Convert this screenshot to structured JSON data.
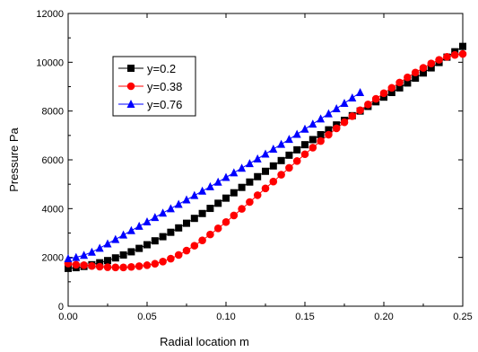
{
  "chart_data": {
    "type": "scatter",
    "title": "",
    "xlabel": "Radial location m",
    "ylabel": "Pressure Pa",
    "xlim": [
      0,
      0.25
    ],
    "ylim": [
      0,
      12000
    ],
    "x_ticks": [
      0.0,
      0.05,
      0.1,
      0.15,
      0.2,
      0.25
    ],
    "x_tick_labels": [
      "0.00",
      "0.05",
      "0.10",
      "0.15",
      "0.20",
      "0.25"
    ],
    "y_ticks": [
      0,
      2000,
      4000,
      6000,
      8000,
      10000,
      12000
    ],
    "y_tick_labels": [
      "0",
      "2000",
      "4000",
      "6000",
      "8000",
      "10000",
      "12000"
    ],
    "grid": false,
    "legend_position": "top-left",
    "series": [
      {
        "name": "y=0.2",
        "color": "#000000",
        "marker": "square",
        "x": [
          0.0,
          0.005,
          0.01,
          0.015,
          0.02,
          0.025,
          0.03,
          0.035,
          0.04,
          0.045,
          0.05,
          0.055,
          0.06,
          0.065,
          0.07,
          0.075,
          0.08,
          0.085,
          0.09,
          0.095,
          0.1,
          0.105,
          0.11,
          0.115,
          0.12,
          0.125,
          0.13,
          0.135,
          0.14,
          0.145,
          0.15,
          0.155,
          0.16,
          0.165,
          0.17,
          0.175,
          0.18,
          0.185,
          0.19,
          0.195,
          0.2,
          0.205,
          0.21,
          0.215,
          0.22,
          0.225,
          0.23,
          0.235,
          0.24,
          0.245,
          0.25
        ],
        "y": [
          1550,
          1580,
          1630,
          1700,
          1780,
          1870,
          1980,
          2100,
          2230,
          2370,
          2520,
          2680,
          2850,
          3030,
          3210,
          3400,
          3600,
          3800,
          4010,
          4220,
          4430,
          4650,
          4870,
          5090,
          5310,
          5530,
          5750,
          5970,
          6190,
          6410,
          6620,
          6830,
          7030,
          7230,
          7430,
          7620,
          7810,
          8000,
          8190,
          8380,
          8570,
          8760,
          8950,
          9150,
          9350,
          9560,
          9770,
          9990,
          10210,
          10430,
          10650
        ]
      },
      {
        "name": "y=0.38",
        "color": "#ff0000",
        "marker": "circle",
        "x": [
          0.0,
          0.005,
          0.01,
          0.015,
          0.02,
          0.025,
          0.03,
          0.035,
          0.04,
          0.045,
          0.05,
          0.055,
          0.06,
          0.065,
          0.07,
          0.075,
          0.08,
          0.085,
          0.09,
          0.095,
          0.1,
          0.105,
          0.11,
          0.115,
          0.12,
          0.125,
          0.13,
          0.135,
          0.14,
          0.145,
          0.15,
          0.155,
          0.16,
          0.165,
          0.17,
          0.175,
          0.18,
          0.185,
          0.19,
          0.195,
          0.2,
          0.205,
          0.21,
          0.215,
          0.22,
          0.225,
          0.23,
          0.235,
          0.24,
          0.245,
          0.25
        ],
        "y": [
          1750,
          1700,
          1680,
          1650,
          1620,
          1600,
          1590,
          1590,
          1610,
          1640,
          1680,
          1740,
          1830,
          1950,
          2100,
          2280,
          2480,
          2700,
          2940,
          3190,
          3450,
          3720,
          3990,
          4270,
          4550,
          4830,
          5110,
          5390,
          5670,
          5950,
          6230,
          6500,
          6770,
          7030,
          7290,
          7540,
          7790,
          8030,
          8270,
          8500,
          8730,
          8950,
          9170,
          9380,
          9580,
          9770,
          9950,
          10100,
          10220,
          10300,
          10340
        ]
      },
      {
        "name": "y=0.76",
        "color": "#0000ff",
        "marker": "triangle",
        "x": [
          0.0,
          0.005,
          0.01,
          0.015,
          0.02,
          0.025,
          0.03,
          0.035,
          0.04,
          0.045,
          0.05,
          0.055,
          0.06,
          0.065,
          0.07,
          0.075,
          0.08,
          0.085,
          0.09,
          0.095,
          0.1,
          0.105,
          0.11,
          0.115,
          0.12,
          0.125,
          0.13,
          0.135,
          0.14,
          0.145,
          0.15,
          0.155,
          0.16,
          0.165,
          0.17,
          0.175,
          0.18,
          0.185
        ],
        "y": [
          1950,
          2000,
          2090,
          2220,
          2380,
          2560,
          2740,
          2920,
          3100,
          3280,
          3460,
          3640,
          3820,
          4000,
          4180,
          4360,
          4540,
          4720,
          4900,
          5090,
          5280,
          5470,
          5660,
          5850,
          6040,
          6240,
          6440,
          6640,
          6840,
          7050,
          7260,
          7470,
          7680,
          7890,
          8100,
          8320,
          8540,
          8760
        ]
      }
    ]
  }
}
